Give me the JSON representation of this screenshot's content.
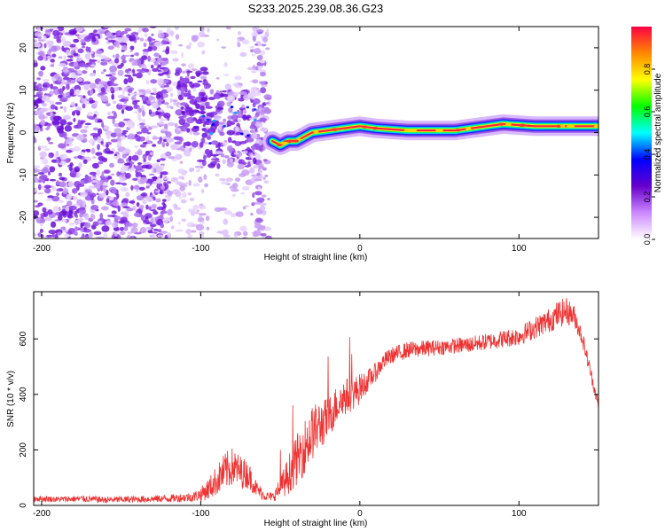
{
  "title": "S233.2025.239.08.36.G23",
  "chart_data": [
    {
      "type": "heatmap",
      "name": "spectrogram",
      "xlabel": "Height of straight line (km)",
      "ylabel": "Frequency (Hz)",
      "xlim": [
        -205,
        150
      ],
      "ylim": [
        -25,
        25
      ],
      "xticks": [
        -200,
        -100,
        0,
        100
      ],
      "yticks": [
        -20,
        -10,
        0,
        10,
        20
      ],
      "ridge": {
        "x": [
          -55,
          -50,
          -45,
          -40,
          -35,
          -30,
          -20,
          -10,
          0,
          10,
          30,
          60,
          80,
          90,
          110,
          130,
          150
        ],
        "freq": [
          -2,
          -3,
          -2,
          -2,
          -1,
          0,
          0.5,
          1,
          1.5,
          1,
          0.5,
          0.5,
          1.5,
          2,
          1.5,
          1.5,
          1.5
        ]
      },
      "colorbar": {
        "label": "Normalized spectral amplitude",
        "range": [
          0,
          1
        ],
        "ticks": [
          "0.0",
          "0.2",
          "0.4",
          "0.6",
          "0.8"
        ],
        "colors": [
          "#ffffff",
          "#cc88ff",
          "#6600cc",
          "#0000ff",
          "#00ffff",
          "#00ff00",
          "#ffff00",
          "#ff8800",
          "#ff0044"
        ]
      }
    },
    {
      "type": "line",
      "name": "snr",
      "xlabel": "Height of straight line (km)",
      "ylabel": "SNR (10 * v/v)",
      "xlim": [
        -205,
        150
      ],
      "ylim": [
        0,
        770
      ],
      "xticks": [
        -200,
        -100,
        0,
        100
      ],
      "yticks": [
        0,
        200,
        400,
        600
      ],
      "series": [
        {
          "name": "SNR",
          "color": "#ee3333",
          "x": [
            -205,
            -190,
            -175,
            -160,
            -140,
            -120,
            -105,
            -100,
            -95,
            -90,
            -85,
            -80,
            -75,
            -70,
            -65,
            -60,
            -55,
            -50,
            -45,
            -40,
            -35,
            -30,
            -25,
            -20,
            -15,
            -10,
            -5,
            0,
            5,
            10,
            15,
            20,
            30,
            40,
            50,
            60,
            70,
            80,
            90,
            100,
            110,
            120,
            125,
            130,
            135,
            140,
            145,
            150
          ],
          "y": [
            25,
            22,
            24,
            20,
            22,
            25,
            30,
            40,
            60,
            90,
            120,
            140,
            120,
            110,
            60,
            35,
            30,
            60,
            110,
            160,
            210,
            260,
            290,
            310,
            360,
            390,
            400,
            420,
            450,
            480,
            520,
            540,
            560,
            565,
            570,
            575,
            580,
            590,
            600,
            610,
            640,
            670,
            690,
            700,
            680,
            600,
            480,
            360
          ],
          "noise": [
            12,
            10,
            12,
            12,
            12,
            14,
            18,
            25,
            40,
            55,
            70,
            70,
            60,
            50,
            30,
            18,
            15,
            40,
            70,
            90,
            100,
            100,
            90,
            80,
            70,
            70,
            60,
            55,
            40,
            35,
            30,
            30,
            30,
            30,
            28,
            28,
            30,
            30,
            32,
            35,
            40,
            45,
            50,
            50,
            40,
            30,
            25,
            20
          ]
        }
      ]
    }
  ]
}
